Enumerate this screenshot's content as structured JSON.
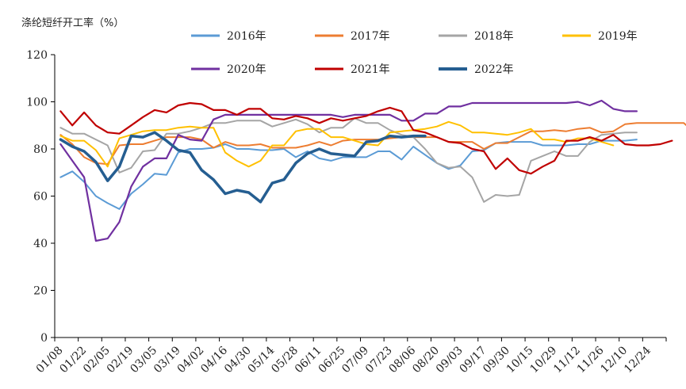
{
  "chart_data": {
    "type": "line",
    "ylabel": "涤纶短纤开工率（%）",
    "ylim": [
      0,
      120
    ],
    "yticks": [
      0,
      20,
      40,
      60,
      80,
      100,
      120
    ],
    "grid": false,
    "legend_position": "top",
    "x_tick_labels": [
      "01/08",
      "01/22",
      "02/05",
      "02/19",
      "03/05",
      "03/19",
      "04/02",
      "04/16",
      "04/30",
      "05/14",
      "05/28",
      "06/11",
      "06/25",
      "07/09",
      "07/23",
      "08/06",
      "08/20",
      "09/03",
      "09/17",
      "09/30",
      "10/15",
      "10/29",
      "11/12",
      "11/26",
      "12/10",
      "12/24"
    ],
    "x_unit": "week",
    "series": [
      {
        "name": "2016年",
        "color": "#5b9bd5",
        "width": 2,
        "values": [
          68,
          70.5,
          66,
          60,
          57,
          54.5,
          61,
          65,
          69.5,
          69,
          78.5,
          80,
          80,
          80.5,
          82,
          80,
          80,
          79.5,
          79.5,
          80,
          76.5,
          79,
          76,
          75,
          76.5,
          76.5,
          76.5,
          79,
          79,
          75.5,
          81,
          77.5,
          74,
          71.5,
          73,
          79,
          79.5,
          82.5,
          83,
          83,
          83,
          81.5,
          81.5,
          81.5,
          82,
          82,
          83.5,
          83.5,
          83.5,
          84
        ]
      },
      {
        "name": "2017年",
        "color": "#ed7d31",
        "width": 2,
        "values": [
          86,
          82,
          76.5,
          74,
          73.5,
          81.5,
          82,
          82,
          83.5,
          85,
          85,
          85,
          84,
          80.5,
          83,
          81.5,
          81.5,
          82,
          80.5,
          80.5,
          80.5,
          81.5,
          83,
          81.5,
          83.5,
          84,
          84,
          84,
          84.5,
          85,
          85,
          85,
          85,
          83,
          83,
          83,
          80,
          82.5,
          82.5,
          85,
          87.5,
          87.5,
          88,
          87.5,
          88.5,
          89,
          87,
          87.5,
          90.5,
          91,
          91,
          91,
          91,
          91,
          86.5,
          88
        ]
      },
      {
        "name": "2018年",
        "color": "#a5a5a5",
        "width": 2,
        "values": [
          89,
          86.5,
          86.5,
          84,
          81.5,
          70,
          72,
          79,
          79.5,
          86.5,
          86.5,
          87.5,
          89,
          91,
          91,
          92,
          92,
          92,
          89.5,
          91,
          92.5,
          90.5,
          87,
          89,
          89,
          93,
          91,
          91,
          88,
          86,
          85,
          80,
          74,
          72,
          72.5,
          68,
          57.5,
          60.5,
          60,
          60.5,
          75,
          77,
          79,
          77,
          77,
          83,
          86,
          86.5,
          87,
          87
        ]
      },
      {
        "name": "2019年",
        "color": "#ffc000",
        "width": 2,
        "values": [
          85.5,
          83.5,
          83.5,
          79.5,
          72.5,
          84.5,
          86,
          87.5,
          88,
          88,
          89,
          89.5,
          89,
          89,
          78.5,
          75,
          72.5,
          75,
          81.5,
          81.5,
          87.5,
          88.5,
          88.5,
          85,
          85,
          83.5,
          82,
          81.5,
          87,
          87.5,
          88,
          88.5,
          89.5,
          91.5,
          90,
          87,
          87,
          86.5,
          86,
          87,
          88.5,
          84,
          84,
          83,
          84.5,
          84.5,
          83,
          81.5
        ]
      },
      {
        "name": "2020年",
        "color": "#7030a0",
        "width": 2.2,
        "values": [
          82,
          75,
          68,
          41,
          42,
          49,
          64,
          72.5,
          76,
          76,
          86,
          84,
          83.5,
          92.5,
          94.5,
          94.5,
          94.5,
          94.5,
          94.5,
          94.5,
          94.5,
          94.5,
          94.5,
          94.5,
          93.5,
          94.5,
          94.5,
          94.5,
          94.5,
          92,
          92,
          95,
          95,
          98,
          98,
          99.5,
          99.5,
          99.5,
          99.5,
          99.5,
          99.5,
          99.5,
          99.5,
          99.5,
          100,
          98.5,
          100.5,
          97,
          96,
          96
        ]
      },
      {
        "name": "2021年",
        "color": "#c00000",
        "width": 2.2,
        "values": [
          96,
          90,
          95.5,
          90,
          87,
          86.5,
          90,
          93.5,
          96.5,
          95.5,
          98.5,
          99.5,
          99,
          96.5,
          96.5,
          94.5,
          97,
          97,
          93,
          92.5,
          94,
          93,
          91,
          93,
          92,
          93,
          94,
          96,
          97.5,
          96,
          88,
          87,
          85,
          83,
          82.5,
          80,
          79,
          71.5,
          76,
          71,
          69.5,
          72.5,
          75,
          83.5,
          83.5,
          85,
          83.5,
          86,
          82,
          81.5,
          81.5,
          82,
          83.5
        ]
      },
      {
        "name": "2022年",
        "color": "#255e91",
        "width": 3.5,
        "values": [
          84,
          81,
          79,
          74.5,
          66.5,
          72.5,
          85.5,
          85,
          87,
          83.5,
          79.5,
          78.5,
          71,
          67,
          61,
          62.5,
          61.5,
          57.5,
          65.5,
          67,
          74,
          78,
          80,
          78,
          77.5,
          77,
          83,
          83.5,
          85.5,
          85,
          85.5,
          85.5
        ]
      }
    ]
  }
}
